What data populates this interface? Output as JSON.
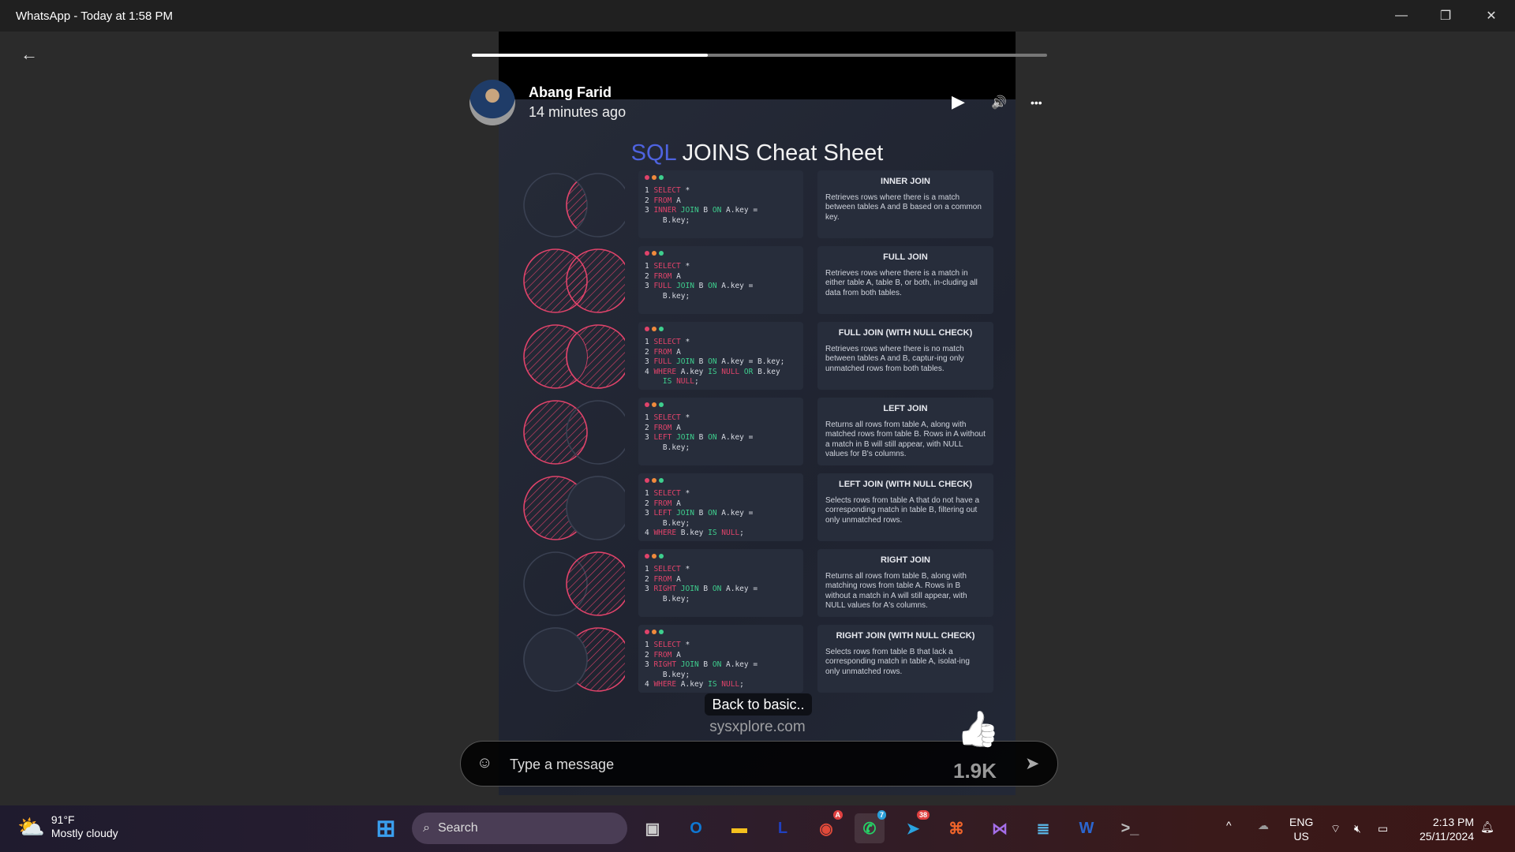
{
  "window": {
    "title": "WhatsApp - Today at 1:58 PM",
    "minimize": "—",
    "restore": "❐",
    "close": "✕"
  },
  "status": {
    "back_icon": "←",
    "progress": 0.41,
    "author": "Abang Farid",
    "time_ago": "14 minutes ago",
    "play_icon": "▶",
    "volume_icon": "🔊",
    "more_icon": "•••"
  },
  "sheet": {
    "title_accent": "SQL",
    "title_rest": " JOINS Cheat Sheet",
    "colors": {
      "accent": "#e0436a",
      "keyword": "#e0436a",
      "join": "#3ecf8e",
      "title_accent": "#4e63e0"
    },
    "rows": [
      {
        "venn": "inner",
        "title": "INNER JOIN",
        "desc": "Retrieves rows where there is a match between tables A and B based on a common key.",
        "code": [
          [
            [
              "SELECT",
              "kw"
            ],
            [
              " *",
              "ln"
            ]
          ],
          [
            [
              "FROM",
              "kw"
            ],
            [
              " A",
              "ln"
            ]
          ],
          [
            [
              "INNER",
              "kw"
            ],
            [
              " JOIN",
              "gr"
            ],
            [
              " B ",
              "ln"
            ],
            [
              "ON",
              "gr"
            ],
            [
              " A.key =",
              "ln"
            ]
          ],
          [
            [
              "  B.key;",
              "ln"
            ]
          ]
        ],
        "nums": [
          "1",
          "2",
          "3",
          ""
        ]
      },
      {
        "venn": "full",
        "title": "FULL JOIN",
        "desc": "Retrieves rows where there is a match in either table A, table B, or both, in-cluding all data from both tables.",
        "code": [
          [
            [
              "SELECT",
              "kw"
            ],
            [
              " *",
              "ln"
            ]
          ],
          [
            [
              "FROM",
              "kw"
            ],
            [
              " A",
              "ln"
            ]
          ],
          [
            [
              "FULL",
              "kw"
            ],
            [
              " JOIN",
              "gr"
            ],
            [
              " B ",
              "ln"
            ],
            [
              "ON",
              "gr"
            ],
            [
              " A.key =",
              "ln"
            ]
          ],
          [
            [
              "  B.key;",
              "ln"
            ]
          ]
        ],
        "nums": [
          "1",
          "2",
          "3",
          ""
        ]
      },
      {
        "venn": "full-null",
        "title": "FULL JOIN (WITH NULL CHECK)",
        "desc": "Retrieves rows where there is no match between tables A and B, captur-ing only unmatched rows from both tables.",
        "code": [
          [
            [
              "SELECT",
              "kw"
            ],
            [
              " *",
              "ln"
            ]
          ],
          [
            [
              "FROM",
              "kw"
            ],
            [
              " A",
              "ln"
            ]
          ],
          [
            [
              "FULL",
              "kw"
            ],
            [
              " JOIN",
              "gr"
            ],
            [
              " B ",
              "ln"
            ],
            [
              "ON",
              "gr"
            ],
            [
              " A.key = B.key;",
              "ln"
            ]
          ],
          [
            [
              "WHERE",
              "kw"
            ],
            [
              " A.key ",
              "ln"
            ],
            [
              "IS",
              "gr"
            ],
            [
              " NULL",
              "kw"
            ],
            [
              " OR",
              "gr"
            ],
            [
              " B.key",
              "ln"
            ]
          ],
          [
            [
              "  IS",
              "gr"
            ],
            [
              " NULL",
              "kw"
            ],
            [
              ";",
              "ln"
            ]
          ]
        ],
        "nums": [
          "1",
          "2",
          "3",
          "4",
          ""
        ]
      },
      {
        "venn": "left",
        "title": "LEFT JOIN",
        "desc": "Returns all rows from table A, along with matched rows from table B. Rows in A without a match in B will still appear, with NULL values for B's columns.",
        "code": [
          [
            [
              "SELECT",
              "kw"
            ],
            [
              " *",
              "ln"
            ]
          ],
          [
            [
              "FROM",
              "kw"
            ],
            [
              " A",
              "ln"
            ]
          ],
          [
            [
              "LEFT",
              "kw"
            ],
            [
              " JOIN",
              "gr"
            ],
            [
              " B ",
              "ln"
            ],
            [
              "ON",
              "gr"
            ],
            [
              " A.key =",
              "ln"
            ]
          ],
          [
            [
              "  B.key;",
              "ln"
            ]
          ]
        ],
        "nums": [
          "1",
          "2",
          "3",
          ""
        ]
      },
      {
        "venn": "left-null",
        "title": "LEFT JOIN (WITH NULL CHECK)",
        "desc": "Selects rows from table A that do not have a corresponding match in table B, filtering out only unmatched rows.",
        "code": [
          [
            [
              "SELECT",
              "kw"
            ],
            [
              " *",
              "ln"
            ]
          ],
          [
            [
              "FROM",
              "kw"
            ],
            [
              " A",
              "ln"
            ]
          ],
          [
            [
              "LEFT",
              "kw"
            ],
            [
              " JOIN",
              "gr"
            ],
            [
              " B ",
              "ln"
            ],
            [
              "ON",
              "gr"
            ],
            [
              " A.key =",
              "ln"
            ]
          ],
          [
            [
              "  B.key;",
              "ln"
            ]
          ],
          [
            [
              "WHERE",
              "kw"
            ],
            [
              " B.key ",
              "ln"
            ],
            [
              "IS",
              "gr"
            ],
            [
              " NULL",
              "kw"
            ],
            [
              ";",
              "ln"
            ]
          ]
        ],
        "nums": [
          "1",
          "2",
          "3",
          "",
          "4"
        ]
      },
      {
        "venn": "right",
        "title": "RIGHT JOIN",
        "desc": "Returns all rows from table B, along with matching rows from table A. Rows in B without a match in A will still appear, with NULL values for A's columns.",
        "code": [
          [
            [
              "SELECT",
              "kw"
            ],
            [
              " *",
              "ln"
            ]
          ],
          [
            [
              "FROM",
              "kw"
            ],
            [
              " A",
              "ln"
            ]
          ],
          [
            [
              "RIGHT",
              "kw"
            ],
            [
              " JOIN",
              "gr"
            ],
            [
              " B ",
              "ln"
            ],
            [
              "ON",
              "gr"
            ],
            [
              " A.key =",
              "ln"
            ]
          ],
          [
            [
              "  B.key;",
              "ln"
            ]
          ]
        ],
        "nums": [
          "1",
          "2",
          "3",
          ""
        ]
      },
      {
        "venn": "right-null",
        "title": "RIGHT JOIN (WITH NULL CHECK)",
        "desc": "Selects rows from table B that lack a corresponding match in table A, isolat-ing only unmatched rows.",
        "code": [
          [
            [
              "SELECT",
              "kw"
            ],
            [
              " *",
              "ln"
            ]
          ],
          [
            [
              "FROM",
              "kw"
            ],
            [
              " A",
              "ln"
            ]
          ],
          [
            [
              "RIGHT",
              "kw"
            ],
            [
              " JOIN",
              "gr"
            ],
            [
              " B ",
              "ln"
            ],
            [
              "ON",
              "gr"
            ],
            [
              " A.key =",
              "ln"
            ]
          ],
          [
            [
              "  B.key;",
              "ln"
            ]
          ],
          [
            [
              "WHERE",
              "kw"
            ],
            [
              " A.key ",
              "ln"
            ],
            [
              "IS",
              "gr"
            ],
            [
              " NULL",
              "kw"
            ],
            [
              ";",
              "ln"
            ]
          ]
        ],
        "nums": [
          "1",
          "2",
          "3",
          "",
          "4"
        ]
      }
    ]
  },
  "caption": "Back to basic..",
  "watermark": "sysxplore.com",
  "reply": {
    "placeholder": "Type a message",
    "emoji_icon": "☺",
    "send_icon": "➤"
  },
  "reaction": {
    "icon": "👍",
    "count": "1.9K"
  },
  "taskbar": {
    "weather_temp": "91°F",
    "weather_desc": "Mostly cloudy",
    "search": "Search",
    "apps": [
      {
        "name": "task-view",
        "glyph": "▣",
        "color": "#ccc"
      },
      {
        "name": "outlook",
        "glyph": "O",
        "color": "#0f78d4"
      },
      {
        "name": "file-explorer",
        "glyph": "▬",
        "color": "#f4c01e"
      },
      {
        "name": "l-app",
        "glyph": "L",
        "color": "#2040c0"
      },
      {
        "name": "chrome",
        "glyph": "◉",
        "color": "#e04a3a",
        "badge": "A"
      },
      {
        "name": "whatsapp",
        "glyph": "✆",
        "color": "#25d366",
        "badge": "7"
      },
      {
        "name": "telegram",
        "glyph": "➤",
        "color": "#2aa3e0",
        "badge": "38"
      },
      {
        "name": "orange-app",
        "glyph": "⌘",
        "color": "#f0642a"
      },
      {
        "name": "visual-studio",
        "glyph": "⋈",
        "color": "#a46ee8"
      },
      {
        "name": "notepad",
        "glyph": "≣",
        "color": "#5ab8e8"
      },
      {
        "name": "word",
        "glyph": "W",
        "color": "#2b66d0"
      },
      {
        "name": "terminal",
        "glyph": ">_",
        "color": "#bbb"
      }
    ],
    "lang": "ENG",
    "region": "US",
    "time": "2:13 PM",
    "date": "25/11/2024"
  }
}
